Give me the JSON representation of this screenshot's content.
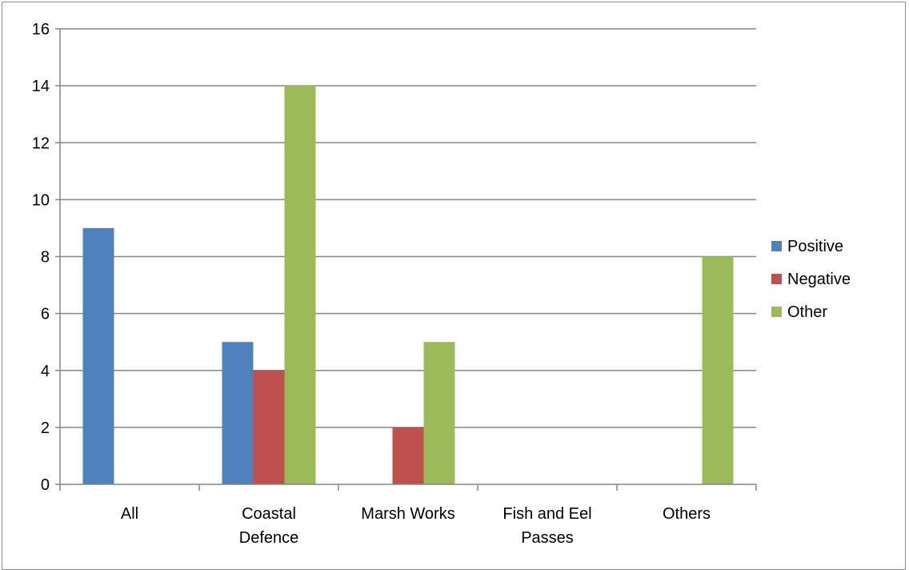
{
  "chart_data": {
    "type": "bar",
    "title": "",
    "xlabel": "",
    "ylabel": "",
    "categories": [
      [
        "All"
      ],
      [
        "Coastal",
        "Defence"
      ],
      [
        "Marsh Works"
      ],
      [
        "Fish and Eel",
        "Passes"
      ],
      [
        "Others"
      ]
    ],
    "series": [
      {
        "name": "Positive",
        "color": "#4f81bd",
        "values": [
          9,
          5,
          0,
          0,
          0
        ]
      },
      {
        "name": "Negative",
        "color": "#c0504d",
        "values": [
          0,
          4,
          2,
          0,
          0
        ]
      },
      {
        "name": "Other",
        "color": "#9bbb59",
        "values": [
          0,
          14,
          5,
          0,
          8
        ]
      }
    ],
    "ylim": [
      0,
      16
    ],
    "yticks": [
      0,
      2,
      4,
      6,
      8,
      10,
      12,
      14,
      16
    ],
    "grid": true,
    "legend": "right"
  }
}
